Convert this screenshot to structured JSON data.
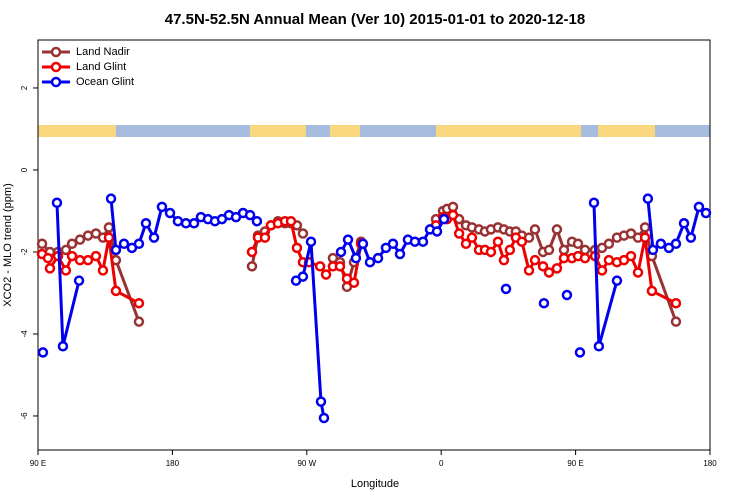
{
  "chart_data": {
    "type": "line",
    "title": "47.5N-52.5N Annual Mean (Ver 10)   2015-01-01 to 2020-12-18",
    "x_label": "Longitude",
    "y_label": "XCO2 - MLO trend (ppm)",
    "xlim": [
      90,
      540
    ],
    "ylim": [
      -6.83,
      3.17
    ],
    "xticks": [
      {
        "value": 90,
        "label": "90 E"
      },
      {
        "value": 180,
        "label": "180"
      },
      {
        "value": 270,
        "label": "90 W"
      },
      {
        "value": 360,
        "label": "0"
      },
      {
        "value": 450,
        "label": "90 E"
      },
      {
        "value": 540,
        "label": "180"
      }
    ],
    "yticks": [
      -6,
      -4,
      -2,
      0,
      2
    ],
    "legend": "top-left",
    "series": [
      {
        "name": "Land Nadir",
        "color": "#993333",
        "x": [
          92.7,
          98,
          103.4,
          108.7,
          112.8,
          118.1,
          123.5,
          128.8,
          133.5,
          137.5,
          142.2,
          157.6,
          null,
          233.3,
          237.3,
          242,
          246,
          250.7,
          255.4,
          259.4,
          263.4,
          267.4,
          null,
          287.5,
          292.2,
          296.9,
          301.6,
          306.3,
          null,
          356.5,
          361.2,
          363.9,
          367.9,
          372,
          376.6,
          380.6,
          385.3,
          389.3,
          393.3,
          398,
          402,
          406,
          410,
          414,
          418.8,
          422.8,
          428.2,
          432.2,
          437.5,
          442.2,
          447.6,
          451.6,
          456.3,
          463,
          467.7,
          472.3,
          477.7,
          482.4,
          487.1,
          491.8,
          496.5,
          501.1,
          517.2
        ],
        "values": [
          -1.8,
          -2.0,
          -2.0,
          -1.95,
          -1.8,
          -1.7,
          -1.6,
          -1.55,
          -1.65,
          -1.4,
          -2.2,
          -3.7,
          null,
          -2.35,
          -1.6,
          -1.5,
          -1.35,
          -1.25,
          -1.3,
          -1.3,
          -1.35,
          -1.55,
          null,
          -2.15,
          -2.25,
          -2.85,
          -2.25,
          -1.75,
          null,
          -1.2,
          -1.0,
          -0.95,
          -0.9,
          -1.2,
          -1.35,
          -1.4,
          -1.45,
          -1.5,
          -1.45,
          -1.4,
          -1.45,
          -1.5,
          -1.5,
          -1.6,
          -1.65,
          -1.45,
          -2.0,
          -1.95,
          -1.45,
          -1.95,
          -1.75,
          -1.8,
          -1.95,
          -1.95,
          -1.9,
          -1.8,
          -1.65,
          -1.6,
          -1.55,
          -1.65,
          -1.4,
          -2.1,
          -3.7
        ]
      },
      {
        "name": "Land Glint",
        "color": "#ee0000",
        "x": [
          92.7,
          96.7,
          98,
          103.4,
          108.7,
          112.8,
          118.1,
          123.5,
          128.8,
          133.5,
          137.5,
          142.2,
          157.6,
          null,
          233.3,
          237.3,
          242,
          246,
          250.7,
          255.4,
          259.4,
          263.4,
          267.4,
          271.5,
          278.9,
          282.9,
          287.5,
          292.2,
          296.9,
          301.6,
          306.3,
          null,
          356.5,
          361.2,
          363.9,
          367.9,
          372,
          376.6,
          380.6,
          385.3,
          389.3,
          393.3,
          398,
          402,
          406,
          410,
          414,
          418.8,
          422.8,
          428.2,
          432.2,
          437.5,
          442.2,
          447.6,
          451.6,
          456.3,
          463,
          467.7,
          472.3,
          477.7,
          482.4,
          487.1,
          491.8,
          496.5,
          501.1,
          517.2
        ],
        "values": [
          -2.05,
          -2.15,
          -2.4,
          -2.1,
          -2.45,
          -2.1,
          -2.2,
          -2.2,
          -2.1,
          -2.45,
          -1.65,
          -2.95,
          -3.25,
          null,
          -2.0,
          -1.65,
          -1.65,
          -1.35,
          -1.3,
          -1.25,
          -1.25,
          -1.9,
          -2.25,
          -2.25,
          -2.35,
          -2.55,
          -2.35,
          -2.35,
          -2.65,
          -2.75,
          -1.8,
          null,
          -1.35,
          -1.15,
          -1.2,
          -1.1,
          -1.55,
          -1.8,
          -1.65,
          -1.95,
          -1.95,
          -2.0,
          -1.75,
          -2.2,
          -1.95,
          -1.65,
          -1.75,
          -2.45,
          -2.2,
          -2.35,
          -2.5,
          -2.4,
          -2.15,
          -2.15,
          -2.1,
          -2.15,
          -2.1,
          -2.45,
          -2.2,
          -2.25,
          -2.2,
          -2.1,
          -2.5,
          -1.65,
          -2.95,
          -3.25
        ]
      },
      {
        "name": "Ocean Glint",
        "color": "#0000ee",
        "x": [
          93.3,
          null,
          102.7,
          106.7,
          117.5,
          null,
          138.9,
          142.2,
          147.6,
          152.9,
          157.6,
          162.3,
          167.7,
          173,
          178.4,
          183.7,
          189.1,
          194.5,
          199.1,
          203.8,
          208.5,
          213.2,
          217.9,
          222.6,
          227.3,
          232,
          236.6,
          null,
          262.8,
          267.4,
          272.8,
          279.5,
          281.5,
          null,
          292.9,
          297.6,
          302.9,
          307.6,
          312.3,
          317.7,
          323,
          327.7,
          332.4,
          337.7,
          342.4,
          347.8,
          352.5,
          357.2,
          361.9,
          null,
          403.4,
          null,
          428.8,
          null,
          444.2,
          null,
          452.9,
          null,
          462.3,
          465.6,
          477.7,
          null,
          498.4,
          501.8,
          507.1,
          512.5,
          517.2,
          522.6,
          527.2,
          532.6,
          537.3
        ],
        "values": [
          -4.45,
          null,
          -0.8,
          -4.3,
          -2.7,
          null,
          -0.7,
          -1.95,
          -1.8,
          -1.9,
          -1.8,
          -1.3,
          -1.65,
          -0.9,
          -1.05,
          -1.25,
          -1.3,
          -1.3,
          -1.15,
          -1.2,
          -1.25,
          -1.2,
          -1.1,
          -1.15,
          -1.05,
          -1.1,
          -1.25,
          null,
          -2.7,
          -2.6,
          -1.75,
          -5.65,
          -6.05,
          null,
          -2.0,
          -1.7,
          -2.15,
          -1.8,
          -2.25,
          -2.15,
          -1.9,
          -1.8,
          -2.05,
          -1.7,
          -1.75,
          -1.75,
          -1.45,
          -1.5,
          -1.2,
          null,
          -2.9,
          null,
          -3.25,
          null,
          -3.05,
          null,
          -4.45,
          null,
          -0.8,
          -4.3,
          -2.7,
          null,
          -0.7,
          -1.95,
          -1.8,
          -1.9,
          -1.8,
          -1.3,
          -1.65,
          -0.9,
          -1.05
        ]
      }
    ]
  }
}
